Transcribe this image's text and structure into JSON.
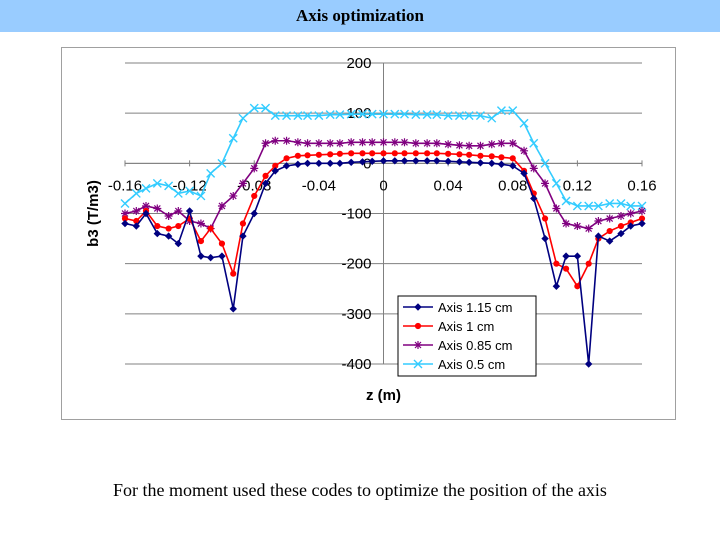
{
  "slide": {
    "title": "Axis optimization",
    "caption": "For the moment used these codes to optimize the position of the axis"
  },
  "chart_data": {
    "type": "line",
    "title": "",
    "xlabel": "z (m)",
    "ylabel": "b3 (T/m3)",
    "xlim": [
      -0.16,
      0.16
    ],
    "ylim": [
      -400,
      200
    ],
    "xticks": [
      "-0.16",
      "-0.12",
      "-0.08",
      "-0.04",
      "0",
      "0.04",
      "0.08",
      "0.12",
      "0.16"
    ],
    "yticks": [
      "200",
      "100",
      "0",
      "-100",
      "-200",
      "-300",
      "-400"
    ],
    "grid": "horizontal",
    "legend": "bottom-right",
    "series": [
      {
        "name": "Axis 1.15 cm",
        "color": "#000080",
        "marker": "diamond",
        "x": [
          -0.16,
          -0.153,
          -0.147,
          -0.14,
          -0.133,
          -0.127,
          -0.12,
          -0.113,
          -0.107,
          -0.1,
          -0.093,
          -0.087,
          -0.08,
          -0.073,
          -0.067,
          -0.06,
          -0.053,
          -0.047,
          -0.04,
          -0.033,
          -0.027,
          -0.02,
          -0.013,
          -0.007,
          0.0,
          0.007,
          0.013,
          0.02,
          0.027,
          0.033,
          0.04,
          0.047,
          0.053,
          0.06,
          0.067,
          0.073,
          0.08,
          0.087,
          0.093,
          0.1,
          0.107,
          0.113,
          0.12,
          0.127,
          0.133,
          0.14,
          0.147,
          0.153,
          0.16
        ],
        "y": [
          -120,
          -125,
          -100,
          -140,
          -145,
          -160,
          -95,
          -185,
          -188,
          -185,
          -290,
          -145,
          -100,
          -40,
          -15,
          -5,
          -2,
          0,
          0,
          0,
          0,
          2,
          3,
          4,
          5,
          5,
          5,
          5,
          5,
          5,
          4,
          3,
          2,
          1,
          0,
          -2,
          -5,
          -20,
          -70,
          -150,
          -245,
          -185,
          -185,
          -400,
          -145,
          -155,
          -140,
          -125,
          -120
        ]
      },
      {
        "name": "Axis 1 cm",
        "color": "#ff0000",
        "marker": "circle",
        "x": [
          -0.16,
          -0.153,
          -0.147,
          -0.14,
          -0.133,
          -0.127,
          -0.12,
          -0.113,
          -0.107,
          -0.1,
          -0.093,
          -0.087,
          -0.08,
          -0.073,
          -0.067,
          -0.06,
          -0.053,
          -0.047,
          -0.04,
          -0.033,
          -0.027,
          -0.02,
          -0.013,
          -0.007,
          0.0,
          0.007,
          0.013,
          0.02,
          0.027,
          0.033,
          0.04,
          0.047,
          0.053,
          0.06,
          0.067,
          0.073,
          0.08,
          0.087,
          0.093,
          0.1,
          0.107,
          0.113,
          0.12,
          0.127,
          0.133,
          0.14,
          0.147,
          0.153,
          0.16
        ],
        "y": [
          -110,
          -115,
          -95,
          -125,
          -130,
          -125,
          -110,
          -155,
          -130,
          -160,
          -220,
          -120,
          -65,
          -25,
          -5,
          10,
          15,
          16,
          17,
          18,
          19,
          20,
          20,
          20,
          20,
          20,
          20,
          20,
          20,
          20,
          19,
          18,
          17,
          15,
          14,
          12,
          10,
          -15,
          -60,
          -110,
          -200,
          -210,
          -245,
          -200,
          -150,
          -135,
          -125,
          -118,
          -110
        ]
      },
      {
        "name": "Axis 0.85 cm",
        "color": "#800080",
        "marker": "star",
        "x": [
          -0.16,
          -0.153,
          -0.147,
          -0.14,
          -0.133,
          -0.127,
          -0.12,
          -0.113,
          -0.107,
          -0.1,
          -0.093,
          -0.087,
          -0.08,
          -0.073,
          -0.067,
          -0.06,
          -0.053,
          -0.047,
          -0.04,
          -0.033,
          -0.027,
          -0.02,
          -0.013,
          -0.007,
          0.0,
          0.007,
          0.013,
          0.02,
          0.027,
          0.033,
          0.04,
          0.047,
          0.053,
          0.06,
          0.067,
          0.073,
          0.08,
          0.087,
          0.093,
          0.1,
          0.107,
          0.113,
          0.12,
          0.127,
          0.133,
          0.14,
          0.147,
          0.153,
          0.16
        ],
        "y": [
          -100,
          -95,
          -85,
          -90,
          -105,
          -95,
          -115,
          -120,
          -130,
          -85,
          -65,
          -40,
          -10,
          40,
          45,
          45,
          42,
          40,
          40,
          40,
          40,
          42,
          42,
          42,
          42,
          42,
          42,
          40,
          40,
          40,
          38,
          36,
          35,
          35,
          38,
          40,
          40,
          25,
          -10,
          -40,
          -90,
          -120,
          -125,
          -130,
          -115,
          -110,
          -105,
          -100,
          -95
        ]
      },
      {
        "name": "Axis 0.5 cm",
        "color": "#33ccff",
        "marker": "x",
        "x": [
          -0.16,
          -0.153,
          -0.147,
          -0.14,
          -0.133,
          -0.127,
          -0.12,
          -0.113,
          -0.107,
          -0.1,
          -0.093,
          -0.087,
          -0.08,
          -0.073,
          -0.067,
          -0.06,
          -0.053,
          -0.047,
          -0.04,
          -0.033,
          -0.027,
          -0.02,
          -0.013,
          -0.007,
          0.0,
          0.007,
          0.013,
          0.02,
          0.027,
          0.033,
          0.04,
          0.047,
          0.053,
          0.06,
          0.067,
          0.073,
          0.08,
          0.087,
          0.093,
          0.1,
          0.107,
          0.113,
          0.12,
          0.127,
          0.133,
          0.14,
          0.147,
          0.153,
          0.16
        ],
        "y": [
          -80,
          -60,
          -50,
          -40,
          -45,
          -60,
          -55,
          -65,
          -20,
          0,
          50,
          90,
          110,
          110,
          95,
          95,
          95,
          95,
          95,
          97,
          97,
          98,
          98,
          98,
          98,
          98,
          98,
          97,
          97,
          97,
          95,
          95,
          95,
          95,
          90,
          105,
          105,
          80,
          40,
          0,
          -40,
          -75,
          -85,
          -85,
          -85,
          -80,
          -80,
          -85,
          -85
        ]
      }
    ]
  }
}
